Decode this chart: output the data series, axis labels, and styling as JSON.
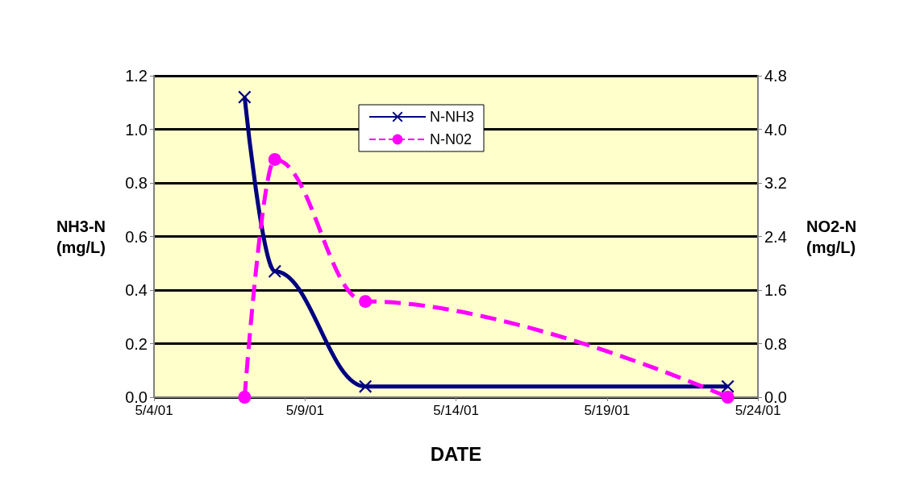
{
  "chart_data": {
    "type": "line",
    "xlabel": "DATE",
    "ylabel": "NH3-N\n(mg/L)",
    "y2label": "NO2-N\n(mg/L)",
    "x": [
      "--05-07",
      "--05-08",
      "--05-11",
      "--05-23"
    ],
    "series": [
      {
        "name": "N-NH3",
        "color": "#000080",
        "values": [
          1.12,
          0.47,
          0.04,
          0.04
        ],
        "marker": "cross",
        "line_style": "solid"
      },
      {
        "name": "N-N02",
        "color": "#ff00ff",
        "values": [
          0,
          3.55,
          1.43,
          0
        ],
        "marker": "circle",
        "line_style": "dashed",
        "axis": "y2"
      }
    ],
    "xlim": [
      "--05-04",
      "--05-24"
    ],
    "xticks": [
      {
        "value": "--05-04",
        "label": "5/4/01"
      },
      {
        "value": "--05-09",
        "label": "5/9/01"
      },
      {
        "value": "--05-14",
        "label": "5/14/01"
      },
      {
        "value": "--05-19",
        "label": "5/19/01"
      },
      {
        "value": "--05-24",
        "label": "5/24/01"
      }
    ],
    "ylim": [
      0,
      1.2
    ],
    "yticks": [
      {
        "value": 0,
        "label": "0.0"
      },
      {
        "value": 0.2,
        "label": "0.2"
      },
      {
        "value": 0.4,
        "label": "0.4"
      },
      {
        "value": 0.6,
        "label": "0.6"
      },
      {
        "value": 0.8,
        "label": "0.8"
      },
      {
        "value": 1.0,
        "label": "1.0"
      },
      {
        "value": 1.2,
        "label": "1.2"
      }
    ],
    "y2lim": [
      0,
      4.8
    ],
    "y2ticks": [
      {
        "value": 0,
        "label": "0.0"
      },
      {
        "value": 0.8,
        "label": "0.8"
      },
      {
        "value": 1.6,
        "label": "1.6"
      },
      {
        "value": 2.4,
        "label": "2.4"
      },
      {
        "value": 3.2,
        "label": "3.2"
      },
      {
        "value": 4.0,
        "label": "4.0"
      },
      {
        "value": 4.8,
        "label": "4.8"
      }
    ],
    "grid": "y",
    "legend": "top"
  }
}
